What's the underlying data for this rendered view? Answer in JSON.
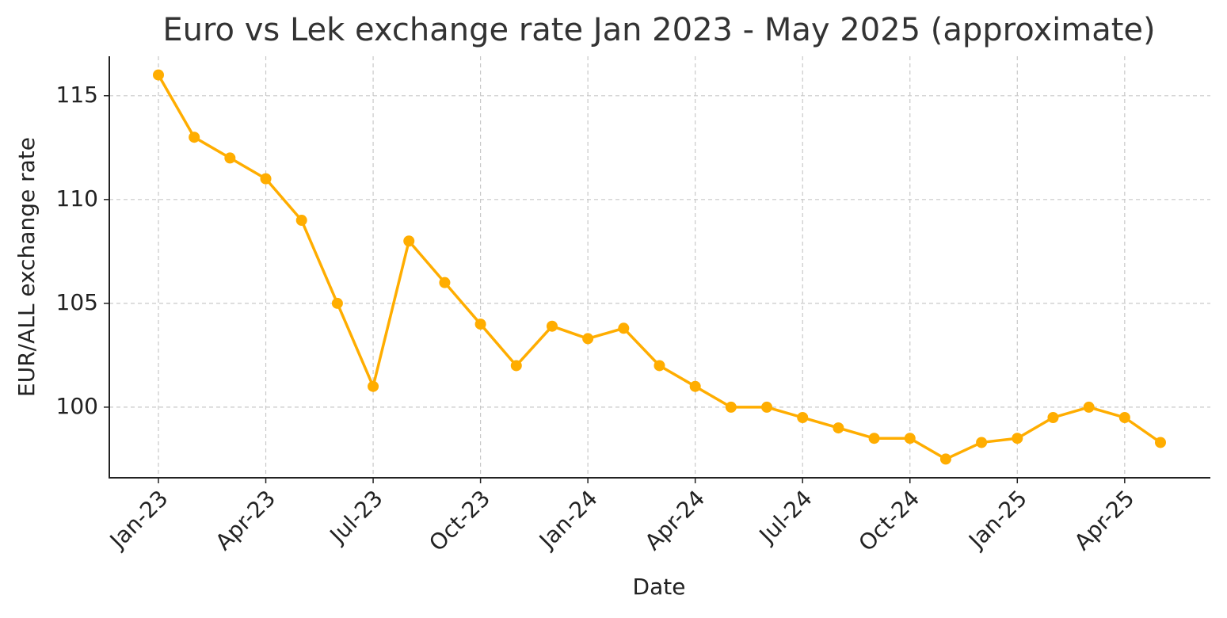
{
  "chart_data": {
    "type": "line",
    "title": "Euro vs Lek exchange rate Jan 2023 - May 2025 (approximate)",
    "xlabel": "Date",
    "ylabel": "EUR/ALL exchange rate",
    "x": [
      "2023-01",
      "2023-02",
      "2023-03",
      "2023-04",
      "2023-05",
      "2023-06",
      "2023-07",
      "2023-08",
      "2023-09",
      "2023-10",
      "2023-11",
      "2023-12",
      "2024-01",
      "2024-02",
      "2024-03",
      "2024-04",
      "2024-05",
      "2024-06",
      "2024-07",
      "2024-08",
      "2024-09",
      "2024-10",
      "2024-11",
      "2024-12",
      "2025-01",
      "2025-02",
      "2025-03",
      "2025-04",
      "2025-05"
    ],
    "values": [
      116,
      113,
      112,
      111,
      109,
      105,
      101,
      108,
      106,
      104,
      102,
      103.9,
      103.3,
      103.8,
      102,
      101,
      100,
      100,
      99.5,
      99,
      98.5,
      98.5,
      97.5,
      98.3,
      98.5,
      99.5,
      100,
      99.5,
      98.3
    ],
    "color": "#ffad00",
    "ylim": [
      96.6,
      116.9
    ],
    "yticks": [
      100,
      105,
      110,
      115
    ],
    "xticks": [
      {
        "value": "2023-01",
        "label": "Jan-23"
      },
      {
        "value": "2023-04",
        "label": "Apr-23"
      },
      {
        "value": "2023-07",
        "label": "Jul-23"
      },
      {
        "value": "2023-10",
        "label": "Oct-23"
      },
      {
        "value": "2024-01",
        "label": "Jan-24"
      },
      {
        "value": "2024-04",
        "label": "Apr-24"
      },
      {
        "value": "2024-07",
        "label": "Jul-24"
      },
      {
        "value": "2024-10",
        "label": "Oct-24"
      },
      {
        "value": "2025-01",
        "label": "Jan-25"
      },
      {
        "value": "2025-04",
        "label": "Apr-25"
      }
    ],
    "grid": true
  }
}
